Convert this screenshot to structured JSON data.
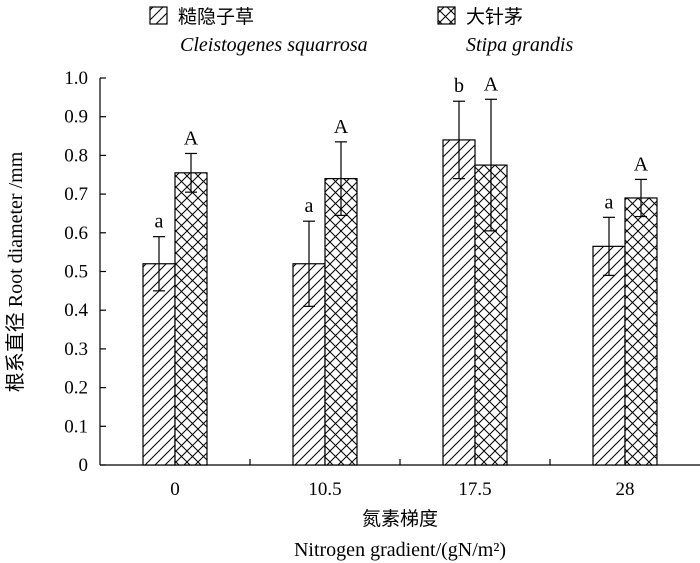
{
  "chart_data": {
    "type": "bar",
    "title": "",
    "xlabel_cn": "氮素梯度",
    "xlabel_en": "Nitrogen gradient/(gN/m²)",
    "ylabel": "根系直径 Root diameter /mm",
    "ylim": [
      0,
      1.0
    ],
    "yticks": [
      "0",
      "0.1",
      "0.2",
      "0.3",
      "0.4",
      "0.5",
      "0.6",
      "0.7",
      "0.8",
      "0.9",
      "1.0"
    ],
    "categories": [
      "0",
      "10.5",
      "17.5",
      "28"
    ],
    "grid": false,
    "legend_position": "top",
    "series": [
      {
        "name_cn": "糙隐子草",
        "name_latin": "Cleistogenes squarrosa",
        "pattern": "diagonal-hatch",
        "values": [
          0.52,
          0.52,
          0.84,
          0.565
        ],
        "errors": [
          0.07,
          0.11,
          0.1,
          0.075
        ],
        "labels": [
          "a",
          "a",
          "b",
          "a"
        ]
      },
      {
        "name_cn": "大针茅",
        "name_latin": "Stipa grandis",
        "pattern": "cross-hatch",
        "values": [
          0.755,
          0.74,
          0.775,
          0.69
        ],
        "errors": [
          0.05,
          0.095,
          0.17,
          0.048
        ],
        "labels": [
          "A",
          "A",
          "A",
          "A"
        ]
      }
    ]
  }
}
